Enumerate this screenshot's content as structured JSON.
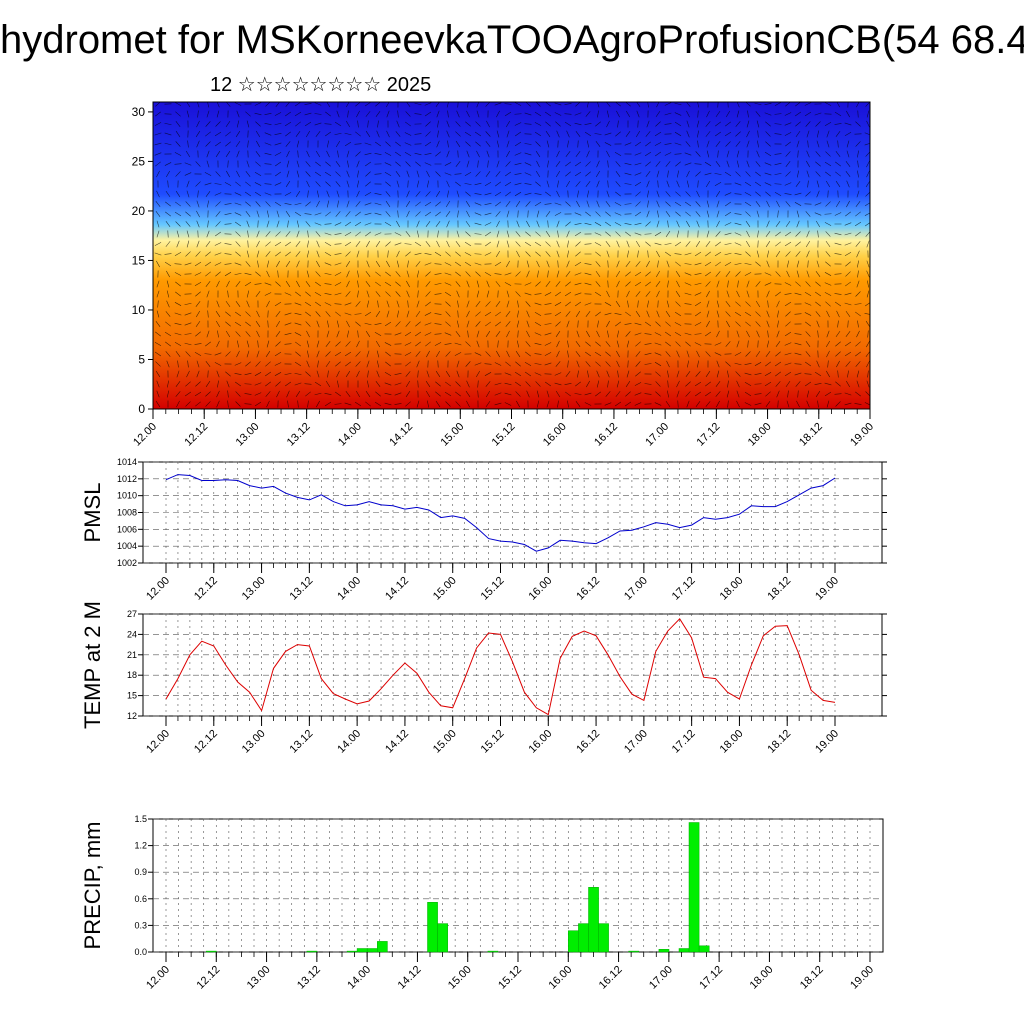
{
  "title": "hydromet for MSKorneevkaTOOAgroProfusionCB(54 68.4",
  "subtitle": "12 ☆☆☆☆☆☆☆☆ 2025",
  "x_tick_labels": [
    "12.00",
    "12.12",
    "13.00",
    "13.12",
    "14.00",
    "14.12",
    "15.00",
    "15.12",
    "16.00",
    "16.12",
    "17.00",
    "17.12",
    "18.00",
    "18.12",
    "19.00"
  ],
  "chart_data": [
    {
      "type": "heatmap",
      "title": "",
      "xlabel": "",
      "ylabel": "",
      "ylim": [
        0,
        31
      ],
      "yticks": [
        0,
        5,
        10,
        15,
        20,
        25,
        30
      ],
      "colormap": [
        "#d40000",
        "#f26a00",
        "#ffd24a",
        "#66c8ff",
        "#1f4cff",
        "#1a10d8"
      ],
      "overlay": "wind vectors"
    },
    {
      "type": "line",
      "ylabel": "PMSL",
      "ylim": [
        1002,
        1014
      ],
      "yticks": [
        1002,
        1004,
        1006,
        1008,
        1010,
        1012,
        1014
      ],
      "color": "#0000cc",
      "series": [
        {
          "values": [
            1011.9,
            1012.5,
            1012.4,
            1011.8,
            1011.8,
            1011.9,
            1011.8,
            1011.2,
            1010.9,
            1011.1,
            1010.3,
            1009.8,
            1009.5,
            1010.1,
            1009.3,
            1008.8,
            1008.9,
            1009.3,
            1008.9,
            1008.8,
            1008.4,
            1008.6,
            1008.3,
            1007.4,
            1007.6,
            1007.3,
            1006.2,
            1004.9,
            1004.6,
            1004.5,
            1004.2,
            1003.4,
            1003.8,
            1004.7,
            1004.6,
            1004.4,
            1004.3,
            1005.0,
            1005.8,
            1005.9,
            1006.3,
            1006.8,
            1006.6,
            1006.2,
            1006.5,
            1007.4,
            1007.2,
            1007.4,
            1007.8,
            1008.8,
            1008.7,
            1008.7,
            1009.3,
            1010.1,
            1010.9,
            1011.2,
            1012.1
          ]
        }
      ]
    },
    {
      "type": "line",
      "ylabel": "TEMP at 2 M",
      "ylim": [
        12,
        27
      ],
      "yticks": [
        12,
        15,
        18,
        21,
        24,
        27
      ],
      "color": "#dd0000",
      "series": [
        {
          "values": [
            14.5,
            17.5,
            21,
            23,
            22.3,
            19.5,
            17,
            15.5,
            12.8,
            19,
            21.5,
            22.5,
            22.3,
            17.5,
            15.3,
            14.5,
            13.8,
            14.2,
            16,
            18,
            19.8,
            18.3,
            15.5,
            13.5,
            13.2,
            17.5,
            22,
            24.2,
            24,
            20,
            15.5,
            13.2,
            12.2,
            20.5,
            23.7,
            24.5,
            23.8,
            21,
            17.8,
            15.2,
            14.3,
            21.5,
            24.5,
            26.3,
            23.5,
            17.7,
            17.5,
            15.5,
            14.5,
            19.5,
            23.8,
            25.2,
            25.3,
            21,
            15.8,
            14.3,
            14
          ]
        }
      ]
    },
    {
      "type": "bar",
      "ylabel": "PRECIP, mm",
      "ylim": [
        0,
        1.5
      ],
      "yticks": [
        "0.0",
        "0.3",
        "0.6",
        "0.9",
        "1.2",
        "1.5"
      ],
      "color": "#00ee00",
      "values": [
        0,
        0,
        0,
        0,
        0,
        0.01,
        0,
        0,
        0,
        0,
        0,
        0,
        0,
        0,
        0,
        0.01,
        0,
        0,
        0,
        0.01,
        0.04,
        0.04,
        0.12,
        0,
        0,
        0,
        0,
        0.56,
        0.32,
        0,
        0,
        0,
        0,
        0.01,
        0,
        0,
        0,
        0,
        0,
        0,
        0,
        0.24,
        0.32,
        0.73,
        0.32,
        0,
        0,
        0.01,
        0,
        0,
        0.03,
        0,
        0.04,
        1.46,
        0.07,
        0,
        0,
        0,
        0,
        0,
        0,
        0,
        0,
        0,
        0,
        0,
        0,
        0,
        0,
        0
      ]
    }
  ]
}
